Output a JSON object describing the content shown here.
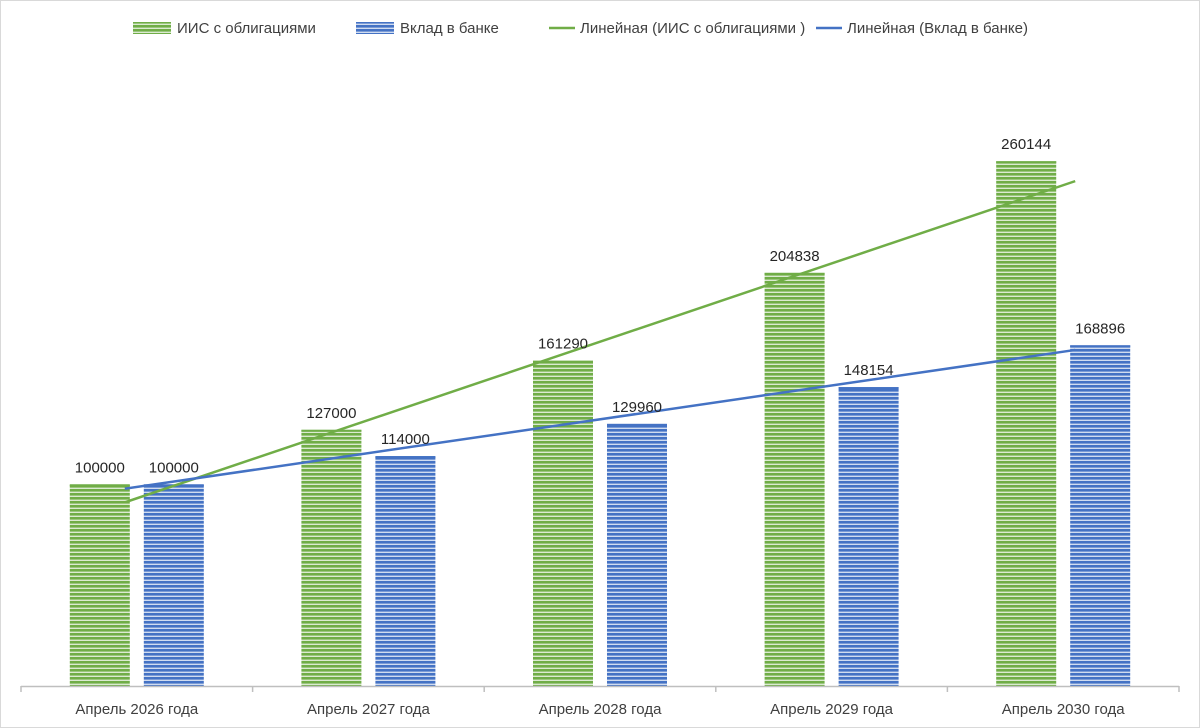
{
  "chart_data": {
    "type": "bar",
    "title": "",
    "xlabel": "",
    "ylabel": "",
    "ylim": [
      0,
      290000
    ],
    "grid": false,
    "legend_position": "top",
    "categories": [
      "Апрель 2026 года",
      "Апрель 2027 года",
      "Апрель 2028 года",
      "Апрель 2029 года",
      "Апрель 2030 года"
    ],
    "series": [
      {
        "name": "ИИС с облигациями",
        "values": [
          100000,
          127000,
          161290,
          204838,
          260144
        ],
        "color": "#70ad47",
        "stripe_color": "#ffffff"
      },
      {
        "name": "Вклад в банке",
        "values": [
          100000,
          114000,
          129960,
          148154,
          168896
        ],
        "color": "#4472c4",
        "stripe_color": "#ffffff"
      }
    ],
    "trendlines": [
      {
        "name": "Линейная (ИИС с облигациями )",
        "series_index": 0,
        "type": "linear",
        "color": "#70ad47"
      },
      {
        "name": "Линейная (Вклад в банке)",
        "series_index": 1,
        "type": "linear",
        "color": "#4472c4"
      }
    ],
    "axis_color": "#bfbfbf"
  }
}
